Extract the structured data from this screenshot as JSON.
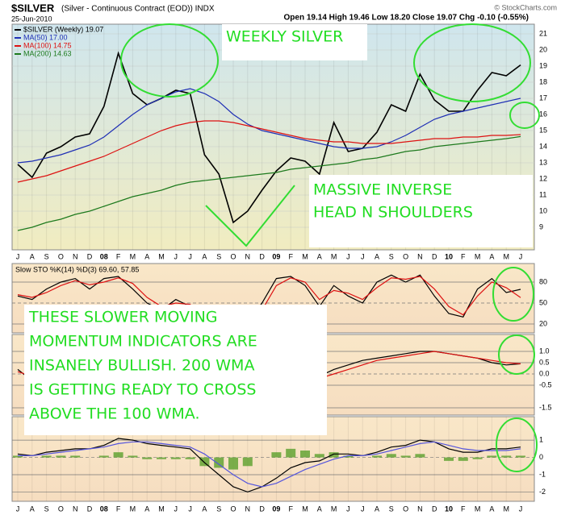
{
  "header": {
    "title": "$SILVER",
    "subtitle": "(Silver - Continuous Contract (EOD)) INDX",
    "date": "25-Jun-2010",
    "quote": "Open 19.14 High 19.46 Low 18.20 Close 19.07 Chg -0.10 (-0.55%)",
    "credit": "© StockCharts.com"
  },
  "annotations": [
    [
      "WEEKLY SILVER"
    ],
    [
      "MASSIVE INVERSE",
      "HEAD N SHOULDERS"
    ],
    [
      "THESE SLOWER MOVING",
      "MOMENTUM INDICATORS ARE",
      "INSANELY BULLISH.  200 WMA",
      "IS GETTING READY TO CROSS",
      "ABOVE THE 100 WMA."
    ]
  ],
  "chart_data": [
    {
      "type": "line",
      "legend": "top-left",
      "categories": [
        "J",
        "A",
        "S",
        "O",
        "N",
        "D",
        "08",
        "F",
        "M",
        "A",
        "M",
        "J",
        "J",
        "A",
        "S",
        "O",
        "N",
        "D",
        "09",
        "F",
        "M",
        "A",
        "M",
        "J",
        "J",
        "A",
        "S",
        "O",
        "N",
        "D",
        "10",
        "F",
        "M",
        "A",
        "M",
        "J"
      ],
      "ylim": [
        7.6,
        21.6
      ],
      "yticks": [
        9,
        10,
        11,
        12,
        13,
        14,
        15,
        16,
        17,
        18,
        19,
        20,
        21
      ],
      "grid": true,
      "series": [
        {
          "name": "$SILVER (Weekly) 19.07",
          "color": "#000000",
          "values": [
            12.9,
            12.1,
            13.6,
            14.0,
            14.6,
            14.8,
            16.5,
            19.8,
            17.3,
            16.6,
            17.0,
            17.5,
            17.3,
            13.5,
            12.3,
            9.3,
            10.0,
            11.3,
            12.5,
            13.3,
            13.1,
            12.3,
            15.5,
            13.7,
            13.9,
            14.9,
            16.6,
            16.2,
            18.5,
            16.9,
            16.2,
            16.2,
            17.5,
            18.6,
            18.4,
            19.07
          ]
        },
        {
          "name": "MA(50) 17.00",
          "color": "#1f2fb5",
          "values": [
            13.0,
            13.1,
            13.3,
            13.5,
            13.8,
            14.1,
            14.6,
            15.3,
            16.0,
            16.6,
            17.0,
            17.4,
            17.6,
            17.3,
            16.8,
            16.0,
            15.4,
            15.0,
            14.8,
            14.6,
            14.4,
            14.2,
            14.0,
            13.9,
            13.9,
            14.0,
            14.3,
            14.7,
            15.2,
            15.7,
            16.0,
            16.2,
            16.4,
            16.6,
            16.8,
            17.0
          ]
        },
        {
          "name": "MA(100) 14.75",
          "color": "#dd1111",
          "values": [
            11.8,
            12.0,
            12.2,
            12.5,
            12.8,
            13.1,
            13.4,
            13.8,
            14.2,
            14.6,
            15.0,
            15.3,
            15.5,
            15.6,
            15.6,
            15.5,
            15.3,
            15.1,
            14.9,
            14.7,
            14.5,
            14.4,
            14.3,
            14.3,
            14.2,
            14.2,
            14.2,
            14.3,
            14.4,
            14.5,
            14.5,
            14.6,
            14.6,
            14.7,
            14.7,
            14.75
          ]
        },
        {
          "name": "MA(200) 14.63",
          "color": "#1d7a1d",
          "values": [
            8.8,
            9.0,
            9.3,
            9.5,
            9.8,
            10.0,
            10.3,
            10.6,
            10.9,
            11.1,
            11.3,
            11.6,
            11.8,
            11.9,
            12.0,
            12.1,
            12.2,
            12.3,
            12.4,
            12.6,
            12.7,
            12.8,
            12.9,
            13.0,
            13.2,
            13.3,
            13.5,
            13.7,
            13.8,
            14.0,
            14.1,
            14.2,
            14.3,
            14.4,
            14.5,
            14.63
          ]
        }
      ]
    },
    {
      "type": "line",
      "title": "Slow STO %K(14) %D(3) 69.60, 57.85",
      "ylim": [
        7.3,
        106.5
      ],
      "yticks": [
        20,
        50,
        80
      ],
      "grid": true,
      "series": [
        {
          "color": "#000000",
          "values": [
            60,
            55,
            70,
            80,
            85,
            70,
            85,
            88,
            70,
            50,
            40,
            55,
            45,
            20,
            18,
            15,
            20,
            50,
            85,
            88,
            75,
            45,
            75,
            60,
            50,
            80,
            90,
            80,
            90,
            60,
            35,
            30,
            70,
            85,
            65,
            69.6
          ]
        },
        {
          "color": "#dd1111",
          "values": [
            62,
            58,
            65,
            75,
            82,
            76,
            80,
            86,
            78,
            58,
            45,
            50,
            48,
            28,
            20,
            17,
            18,
            40,
            75,
            86,
            80,
            55,
            68,
            64,
            55,
            72,
            86,
            84,
            88,
            70,
            45,
            33,
            60,
            80,
            72,
            57.85
          ]
        }
      ]
    },
    {
      "type": "line",
      "ylim": [
        -1.82,
        1.75
      ],
      "yticks": [
        {
          "value": 1,
          "label": "1.0"
        },
        0.5,
        {
          "value": 0,
          "label": "0.0"
        },
        -0.5,
        -1.5
      ],
      "grid": true,
      "series": [
        {
          "color": "#000000",
          "values": [
            0.2,
            -0.3,
            -0.2,
            0.0,
            0.2,
            0.4,
            0.6,
            0.8,
            0.7,
            0.6,
            0.6,
            0.6,
            0.7,
            0.6,
            0.5,
            0.3,
            0.1,
            -0.1,
            -0.2,
            -0.3,
            -0.3,
            -0.1,
            0.2,
            0.4,
            0.6,
            0.7,
            0.8,
            0.9,
            1.0,
            1.0,
            0.9,
            0.8,
            0.7,
            0.5,
            0.4,
            0.45
          ]
        },
        {
          "color": "#dd1111",
          "values": [
            0.1,
            -0.1,
            -0.2,
            -0.1,
            0.1,
            0.3,
            0.5,
            0.7,
            0.7,
            0.6,
            0.6,
            0.6,
            0.6,
            0.6,
            0.5,
            0.4,
            0.2,
            0.0,
            -0.1,
            -0.2,
            -0.3,
            -0.2,
            0.0,
            0.2,
            0.4,
            0.6,
            0.7,
            0.8,
            0.9,
            1.0,
            0.9,
            0.8,
            0.7,
            0.6,
            0.5,
            0.45
          ]
        }
      ]
    },
    {
      "type": "line",
      "categories": [
        "J",
        "A",
        "S",
        "O",
        "N",
        "D",
        "08",
        "F",
        "M",
        "A",
        "M",
        "J",
        "J",
        "A",
        "S",
        "O",
        "N",
        "D",
        "09",
        "F",
        "M",
        "A",
        "M",
        "J",
        "J",
        "A",
        "S",
        "O",
        "N",
        "D",
        "10",
        "F",
        "M",
        "A",
        "M",
        "J"
      ],
      "ylim": [
        -2.54,
        2.36
      ],
      "yticks": [
        -2,
        -1,
        0,
        1
      ],
      "grid": true,
      "series": [
        {
          "style": "bar",
          "color": "#5aa02c",
          "values": [
            0.1,
            0.0,
            0.1,
            0.1,
            0.1,
            0.0,
            0.1,
            0.3,
            0.1,
            -0.1,
            -0.1,
            -0.1,
            -0.1,
            -0.5,
            -0.6,
            -0.7,
            -0.5,
            0.0,
            0.3,
            0.5,
            0.4,
            0.2,
            0.3,
            0.1,
            0.0,
            0.1,
            0.2,
            0.1,
            0.2,
            0.0,
            -0.2,
            -0.2,
            -0.1,
            0.1,
            0.1,
            0.1
          ]
        },
        {
          "color": "#000000",
          "values": [
            0.2,
            0.1,
            0.3,
            0.4,
            0.5,
            0.5,
            0.7,
            1.1,
            1.0,
            0.8,
            0.7,
            0.6,
            0.5,
            -0.3,
            -1.0,
            -1.7,
            -2.0,
            -1.7,
            -1.2,
            -0.6,
            -0.3,
            -0.2,
            0.2,
            0.2,
            0.1,
            0.3,
            0.6,
            0.7,
            1.0,
            0.9,
            0.5,
            0.3,
            0.3,
            0.5,
            0.5,
            0.6
          ]
        },
        {
          "color": "#5555dd",
          "values": [
            0.1,
            0.1,
            0.2,
            0.3,
            0.4,
            0.5,
            0.6,
            0.8,
            0.9,
            0.9,
            0.8,
            0.7,
            0.6,
            0.2,
            -0.4,
            -1.0,
            -1.5,
            -1.7,
            -1.5,
            -1.1,
            -0.7,
            -0.4,
            -0.1,
            0.1,
            0.1,
            0.2,
            0.4,
            0.6,
            0.8,
            0.9,
            0.7,
            0.5,
            0.4,
            0.4,
            0.4,
            0.5
          ]
        }
      ]
    }
  ]
}
